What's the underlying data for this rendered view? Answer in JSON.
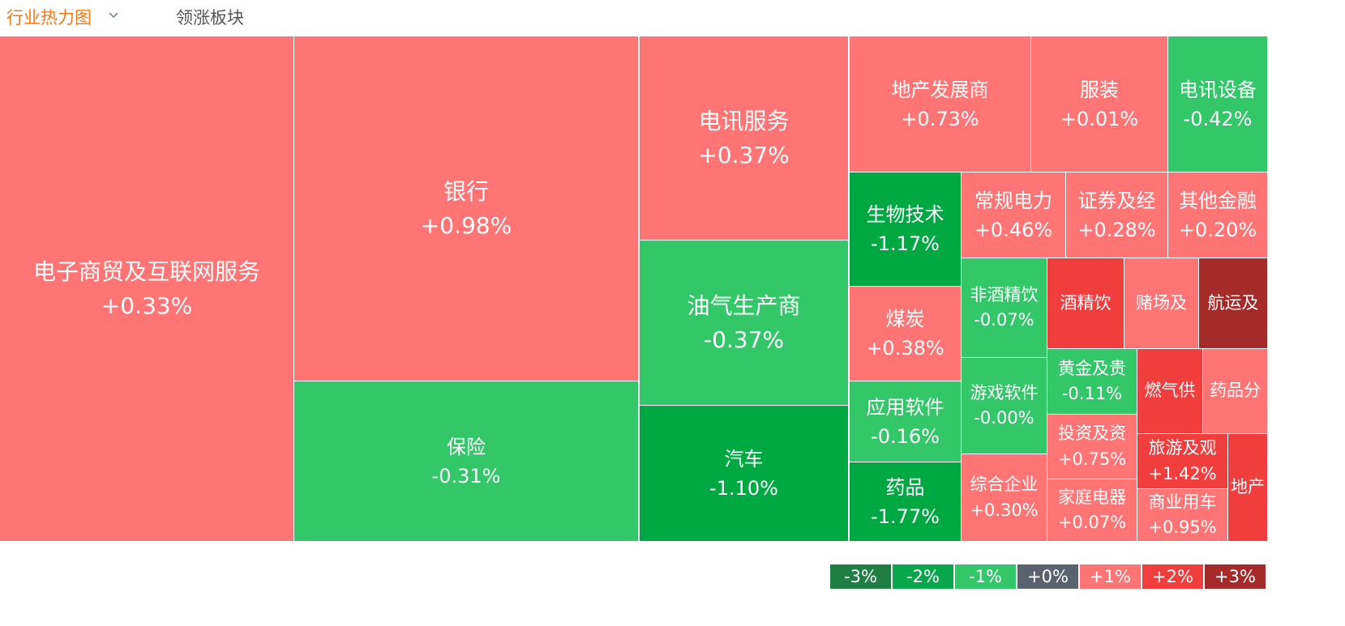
{
  "header": {
    "tabs": [
      "行业热力图",
      "领涨板块"
    ]
  },
  "cells": [
    {
      "name": "电子商贸及互联网服务",
      "change": "+0.33%",
      "color": "#ff7474"
    },
    {
      "name": "银行",
      "change": "+0.98%",
      "color": "#ff7474"
    },
    {
      "name": "保险",
      "change": "-0.31%",
      "color": "#33c76a"
    },
    {
      "name": "电讯服务",
      "change": "+0.37%",
      "color": "#ff7474"
    },
    {
      "name": "油气生产商",
      "change": "-0.37%",
      "color": "#33c76a"
    },
    {
      "name": "汽车",
      "change": "-1.10%",
      "color": "#00a843"
    },
    {
      "name": "地产发展商",
      "change": "+0.73%",
      "color": "#ff7474"
    },
    {
      "name": "服装",
      "change": "+0.01%",
      "color": "#ff7474"
    },
    {
      "name": "电讯设备",
      "change": "-0.42%",
      "color": "#33c76a"
    },
    {
      "name": "生物技术",
      "change": "-1.17%",
      "color": "#00a843"
    },
    {
      "name": "常规电力",
      "change": "+0.46%",
      "color": "#ff7474"
    },
    {
      "name": "证券及经",
      "change": "+0.28%",
      "color": "#ff7474"
    },
    {
      "name": "其他金融",
      "change": "+0.20%",
      "color": "#ff7474"
    },
    {
      "name": "煤炭",
      "change": "+0.38%",
      "color": "#ff7474"
    },
    {
      "name": "应用软件",
      "change": "-0.16%",
      "color": "#33c76a"
    },
    {
      "name": "药品",
      "change": "-1.77%",
      "color": "#00a843"
    },
    {
      "name": "非酒精饮",
      "change": "-0.07%",
      "color": "#33c76a"
    },
    {
      "name": "游戏软件",
      "change": "-0.00%",
      "color": "#33c76a"
    },
    {
      "name": "综合企业",
      "change": "+0.30%",
      "color": "#ff7474"
    },
    {
      "name": "酒精饮",
      "color": "#f03e3e"
    },
    {
      "name": "赌场及",
      "color": "#ff7474"
    },
    {
      "name": "航运及",
      "color": "#a52a2a"
    },
    {
      "name": "黄金及贵",
      "change": "-0.11%",
      "color": "#33c76a"
    },
    {
      "name": "燃气供",
      "color": "#f03e3e"
    },
    {
      "name": "药品分",
      "color": "#ff7474"
    },
    {
      "name": "投资及资",
      "change": "+0.75%",
      "color": "#ff7474"
    },
    {
      "name": "家庭电器",
      "change": "+0.07%",
      "color": "#ff7474"
    },
    {
      "name": "旅游及观",
      "change": "+1.42%",
      "color": "#f03e3e"
    },
    {
      "name": "商业用车",
      "change": "+0.95%",
      "color": "#ff7474"
    },
    {
      "name": "地产",
      "color": "#f03e3e"
    }
  ],
  "legend": [
    {
      "label": "-3%",
      "color": "#1e7e44"
    },
    {
      "label": "-2%",
      "color": "#0aa64b"
    },
    {
      "label": "-1%",
      "color": "#33c76a"
    },
    {
      "label": "+0%",
      "color": "#5a6270"
    },
    {
      "label": "+1%",
      "color": "#ff7474"
    },
    {
      "label": "+2%",
      "color": "#f03e3e"
    },
    {
      "label": "+3%",
      "color": "#a52a2a"
    }
  ]
}
